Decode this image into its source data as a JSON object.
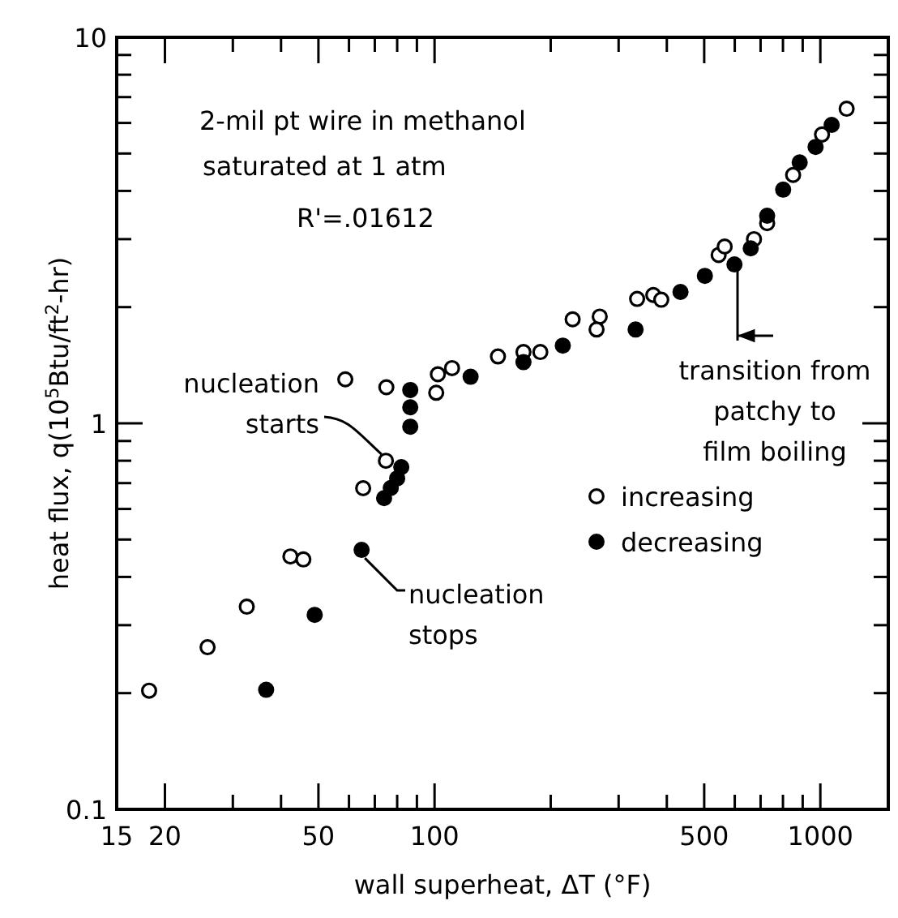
{
  "chart_data": {
    "type": "scatter",
    "xlabel": "wall superheat, ΔT (°F)",
    "ylabel": "heat flux, q(10$^{5}$Btu/ft$^{2}$-hr)",
    "log": "xy",
    "grid": false,
    "legend": "right",
    "marker": "circle",
    "xlim": [
      15,
      1500
    ],
    "ylim": [
      0.1,
      10
    ],
    "xticks": [
      15,
      20,
      {
        "value": 30,
        "label": null
      },
      {
        "value": 40,
        "label": null
      },
      50,
      {
        "value": 60,
        "label": null
      },
      {
        "value": 70,
        "label": null
      },
      {
        "value": 80,
        "label": null
      },
      {
        "value": 90,
        "label": null
      },
      100,
      {
        "value": 200,
        "label": null
      },
      {
        "value": 300,
        "label": null
      },
      {
        "value": 400,
        "label": null
      },
      500,
      {
        "value": 600,
        "label": null
      },
      {
        "value": 700,
        "label": null
      },
      {
        "value": 800,
        "label": null
      },
      {
        "value": 900,
        "label": null
      },
      1000
    ],
    "yticks": [
      {
        "value": 0.1,
        "label": "0.1"
      },
      {
        "value": 0.2,
        "label": null
      },
      {
        "value": 0.3,
        "label": null
      },
      {
        "value": 0.4,
        "label": null
      },
      {
        "value": 0.5,
        "label": null
      },
      {
        "value": 0.6,
        "label": null
      },
      {
        "value": 0.7,
        "label": null
      },
      {
        "value": 0.8,
        "label": null
      },
      {
        "value": 0.9,
        "label": null
      },
      1,
      {
        "value": 2,
        "label": null
      },
      {
        "value": 3,
        "label": null
      },
      {
        "value": 4,
        "label": null
      },
      {
        "value": 5,
        "label": null
      },
      {
        "value": 6,
        "label": null
      },
      {
        "value": 7,
        "label": null
      },
      {
        "value": 8,
        "label": null
      },
      {
        "value": 9,
        "label": null
      },
      10
    ],
    "annotations": [
      "2-mil pt wire in methanol",
      "saturated at 1 atm",
      "R'=.01612",
      {
        "text": "nucleation starts",
        "x": 75,
        "y": 0.8
      },
      {
        "text": "nucleation stops",
        "x": 64.7,
        "y": 0.47
      },
      {
        "text": "transition from patchy to film boiling",
        "x": 610,
        "y": 2.6
      }
    ],
    "series": [
      {
        "name": "increasing",
        "color": "#ffffff",
        "x": [
          18.2,
          25.8,
          32.6,
          42.3,
          45.7,
          65.3,
          74.8,
          58.7,
          75,
          101,
          102,
          111,
          146,
          170,
          188,
          228,
          268,
          263,
          335,
          369,
          387,
          545,
          565,
          673,
          728,
          850,
          1010,
          1170
        ],
        "values": [
          0.203,
          0.263,
          0.335,
          0.452,
          0.444,
          0.679,
          0.8,
          1.3,
          1.24,
          1.2,
          1.34,
          1.39,
          1.49,
          1.53,
          1.53,
          1.86,
          1.89,
          1.75,
          2.1,
          2.15,
          2.09,
          2.73,
          2.87,
          3.0,
          3.3,
          4.4,
          5.6,
          6.53
        ]
      },
      {
        "name": "decreasing",
        "color": "#000000",
        "x": [
          36.6,
          48.9,
          64.7,
          74,
          77,
          80,
          82,
          86.5,
          86.5,
          86.5,
          124,
          170,
          215,
          332,
          434,
          502,
          599,
          660,
          728,
          801,
          884,
          972,
          1070
        ],
        "values": [
          0.204,
          0.319,
          0.47,
          0.64,
          0.68,
          0.72,
          0.77,
          0.98,
          1.1,
          1.22,
          1.32,
          1.44,
          1.59,
          1.75,
          2.19,
          2.41,
          2.58,
          2.84,
          3.45,
          4.03,
          4.74,
          5.2,
          5.93
        ]
      }
    ]
  }
}
